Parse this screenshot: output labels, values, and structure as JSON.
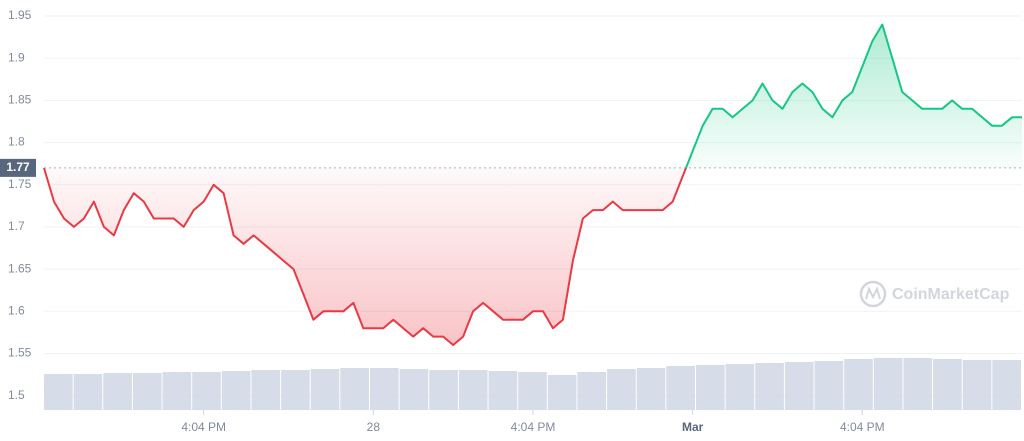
{
  "chart_data": {
    "type": "line",
    "series": [
      {
        "name": "Price",
        "color_up": "#16c784",
        "color_down": "#ea3943",
        "values": [
          1.77,
          1.73,
          1.71,
          1.7,
          1.71,
          1.73,
          1.7,
          1.69,
          1.72,
          1.74,
          1.73,
          1.71,
          1.71,
          1.71,
          1.7,
          1.72,
          1.73,
          1.75,
          1.74,
          1.69,
          1.68,
          1.69,
          1.68,
          1.67,
          1.66,
          1.65,
          1.62,
          1.59,
          1.6,
          1.6,
          1.6,
          1.61,
          1.58,
          1.58,
          1.58,
          1.59,
          1.58,
          1.57,
          1.58,
          1.57,
          1.57,
          1.56,
          1.57,
          1.6,
          1.61,
          1.6,
          1.59,
          1.59,
          1.59,
          1.6,
          1.6,
          1.58,
          1.59,
          1.66,
          1.71,
          1.72,
          1.72,
          1.73,
          1.72,
          1.72,
          1.72,
          1.72,
          1.72,
          1.73,
          1.76,
          1.79,
          1.82,
          1.84,
          1.84,
          1.83,
          1.84,
          1.85,
          1.87,
          1.85,
          1.84,
          1.86,
          1.87,
          1.86,
          1.84,
          1.83,
          1.85,
          1.86,
          1.89,
          1.92,
          1.94,
          1.9,
          1.86,
          1.85,
          1.84,
          1.84,
          1.84,
          1.85,
          1.84,
          1.84,
          1.83,
          1.82,
          1.82,
          1.83,
          1.83
        ]
      }
    ],
    "volume": {
      "color": "#cfd6e4",
      "values": [
        36,
        36,
        37,
        37,
        38,
        38,
        39,
        40,
        40,
        41,
        42,
        42,
        41,
        40,
        40,
        39,
        38,
        35,
        38,
        41,
        42,
        44,
        45,
        46,
        47,
        48,
        49,
        51,
        52,
        52,
        51,
        50,
        50
      ],
      "lim": [
        0,
        100
      ]
    },
    "baseline": 1.77,
    "ylim": [
      1.483,
      1.969
    ],
    "yticks": [
      1.5,
      1.55,
      1.6,
      1.65,
      1.7,
      1.75,
      1.8,
      1.85,
      1.9,
      1.95
    ],
    "xlim": [
      0,
      98
    ],
    "xticks": [
      {
        "value": 16,
        "label": "4:04 PM"
      },
      {
        "value": 33,
        "label": "28"
      },
      {
        "value": 49,
        "label": "4:04 PM"
      },
      {
        "value": 65,
        "label": "Mar"
      },
      {
        "value": 82,
        "label": "4:04 PM"
      }
    ],
    "grid": true,
    "watermark": "CoinMarketCap"
  }
}
